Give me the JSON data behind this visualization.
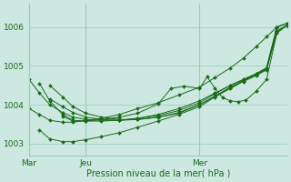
{
  "bg_color": "#cce8e0",
  "grid_color": "#99ccbb",
  "line_color": "#1a6b1a",
  "marker_color": "#1a6b1a",
  "xlabel": "Pression niveau de la mer( hPa )",
  "xtick_labels": [
    "Mar",
    "Jeu",
    "Mer"
  ],
  "xtick_positions": [
    0.0,
    0.22,
    0.66
  ],
  "ylim": [
    1002.7,
    1006.6
  ],
  "yticks": [
    1003,
    1004,
    1005,
    1006
  ],
  "font_color": "#1a6b1a",
  "series": [
    {
      "x": [
        0.0,
        0.04,
        0.08,
        0.13,
        0.17,
        0.22,
        0.28,
        0.35,
        0.42,
        0.5,
        0.58,
        0.66,
        0.72,
        0.78,
        0.83,
        0.88,
        0.92,
        0.96,
        1.0
      ],
      "y": [
        1003.9,
        1003.75,
        1003.6,
        1003.55,
        1003.55,
        1003.6,
        1003.65,
        1003.75,
        1003.9,
        1004.05,
        1004.25,
        1004.45,
        1004.7,
        1004.95,
        1005.2,
        1005.5,
        1005.75,
        1006.0,
        1006.1
      ]
    },
    {
      "x": [
        0.0,
        0.04,
        0.08,
        0.13,
        0.17,
        0.22,
        0.28,
        0.35,
        0.42,
        0.5,
        0.58,
        0.66,
        0.72,
        0.78,
        0.83,
        0.88,
        0.92,
        0.96,
        1.0
      ],
      "y": [
        1004.65,
        1004.3,
        1004.0,
        1003.8,
        1003.68,
        1003.62,
        1003.6,
        1003.6,
        1003.65,
        1003.75,
        1003.9,
        1004.1,
        1004.3,
        1004.5,
        1004.65,
        1004.8,
        1004.95,
        1006.0,
        1006.1
      ]
    },
    {
      "x": [
        0.04,
        0.08,
        0.13,
        0.17,
        0.22,
        0.28,
        0.35,
        0.42,
        0.5,
        0.58,
        0.66,
        0.72,
        0.78,
        0.83,
        0.88,
        0.92,
        0.96,
        1.0
      ],
      "y": [
        1004.55,
        1004.1,
        1003.75,
        1003.6,
        1003.58,
        1003.58,
        1003.6,
        1003.65,
        1003.72,
        1003.85,
        1004.05,
        1004.28,
        1004.5,
        1004.65,
        1004.8,
        1004.95,
        1006.0,
        1006.1
      ]
    },
    {
      "x": [
        0.04,
        0.08,
        0.13,
        0.17,
        0.22,
        0.28,
        0.35,
        0.42,
        0.5,
        0.58,
        0.66,
        0.72,
        0.78,
        0.83,
        0.88,
        0.92,
        0.96,
        1.0
      ],
      "y": [
        1003.35,
        1003.12,
        1003.05,
        1003.05,
        1003.1,
        1003.18,
        1003.28,
        1003.42,
        1003.58,
        1003.75,
        1003.95,
        1004.2,
        1004.42,
        1004.6,
        1004.75,
        1004.9,
        1005.9,
        1006.05
      ]
    },
    {
      "x": [
        0.08,
        0.13,
        0.17,
        0.22,
        0.28,
        0.35,
        0.42,
        0.5,
        0.58,
        0.66,
        0.72,
        0.78,
        0.83,
        0.88,
        0.92,
        0.96,
        1.0
      ],
      "y": [
        1004.15,
        1003.95,
        1003.8,
        1003.68,
        1003.62,
        1003.6,
        1003.62,
        1003.68,
        1003.8,
        1004.0,
        1004.22,
        1004.45,
        1004.62,
        1004.78,
        1004.92,
        1005.9,
        1006.05
      ]
    },
    {
      "x": [
        0.08,
        0.13,
        0.17,
        0.22,
        0.28,
        0.35,
        0.42,
        0.5,
        0.58,
        0.66,
        0.72,
        0.78,
        0.83,
        0.88,
        0.92,
        0.96,
        1.0
      ],
      "y": [
        1004.5,
        1004.2,
        1003.95,
        1003.78,
        1003.68,
        1003.62,
        1003.62,
        1003.68,
        1003.78,
        1004.0,
        1004.22,
        1004.45,
        1004.62,
        1004.78,
        1004.92,
        1005.85,
        1006.05
      ]
    },
    {
      "x": [
        0.13,
        0.17,
        0.22,
        0.28,
        0.35,
        0.42,
        0.5,
        0.55,
        0.6,
        0.66,
        0.69,
        0.72,
        0.75,
        0.78,
        0.81,
        0.84,
        0.88,
        0.92,
        0.96,
        1.0
      ],
      "y": [
        1003.7,
        1003.58,
        1003.58,
        1003.62,
        1003.68,
        1003.78,
        1004.02,
        1004.42,
        1004.48,
        1004.42,
        1004.72,
        1004.42,
        1004.18,
        1004.1,
        1004.08,
        1004.12,
        1004.35,
        1004.65,
        1005.85,
        1006.05
      ]
    }
  ]
}
